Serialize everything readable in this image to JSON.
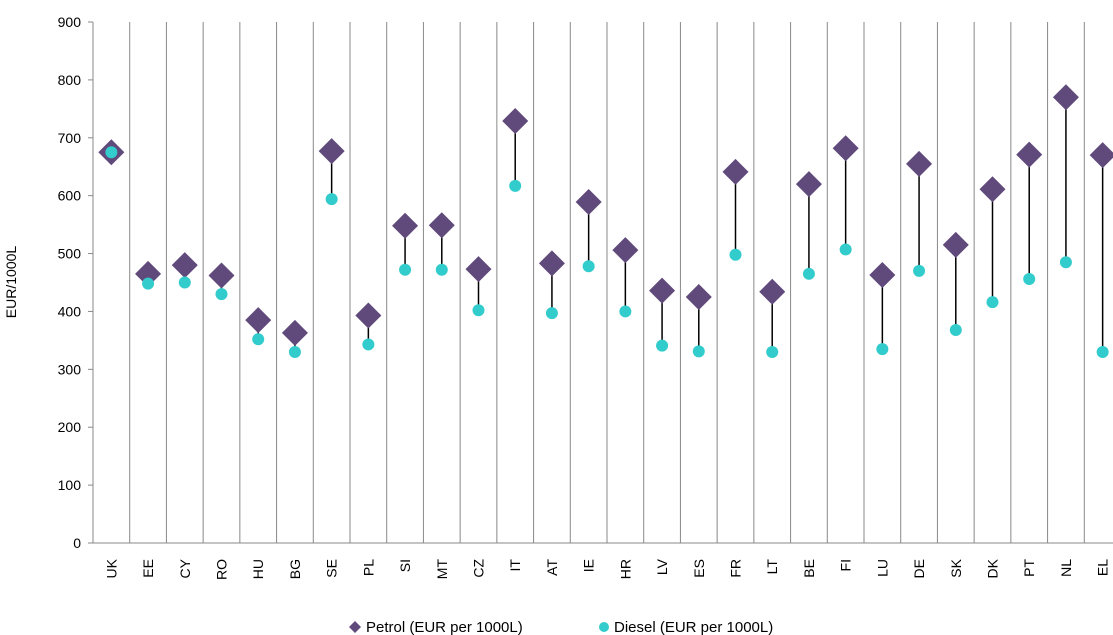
{
  "chart_data": {
    "type": "scatter",
    "title": "",
    "xlabel": "",
    "ylabel": "EUR/1000L",
    "ylim": [
      0,
      900
    ],
    "yticks": [
      0,
      100,
      200,
      300,
      400,
      500,
      600,
      700,
      800,
      900
    ],
    "grid": "vertical",
    "legend_position": "bottom",
    "categories": [
      "UK",
      "EE",
      "CY",
      "RO",
      "HU",
      "BG",
      "SE",
      "PL",
      "SI",
      "MT",
      "CZ",
      "IT",
      "AT",
      "IE",
      "HR",
      "LV",
      "ES",
      "FR",
      "LT",
      "BE",
      "FI",
      "LU",
      "DE",
      "SK",
      "DK",
      "PT",
      "NL",
      "EL"
    ],
    "series": [
      {
        "name": "Petrol (EUR per 1000L)",
        "marker": "diamond",
        "color": "#604A7B",
        "values": [
          675,
          465,
          480,
          462,
          385,
          363,
          677,
          393,
          548,
          549,
          473,
          729,
          483,
          589,
          506,
          436,
          425,
          641,
          434,
          620,
          682,
          463,
          655,
          515,
          611,
          671,
          770,
          670
        ]
      },
      {
        "name": "Diesel (EUR per 1000L)",
        "marker": "circle",
        "color": "#33CCCC",
        "values": [
          675,
          448,
          450,
          430,
          352,
          330,
          594,
          343,
          472,
          472,
          402,
          617,
          397,
          478,
          400,
          341,
          331,
          498,
          330,
          465,
          507,
          335,
          470,
          368,
          416,
          456,
          485,
          330
        ]
      }
    ]
  }
}
